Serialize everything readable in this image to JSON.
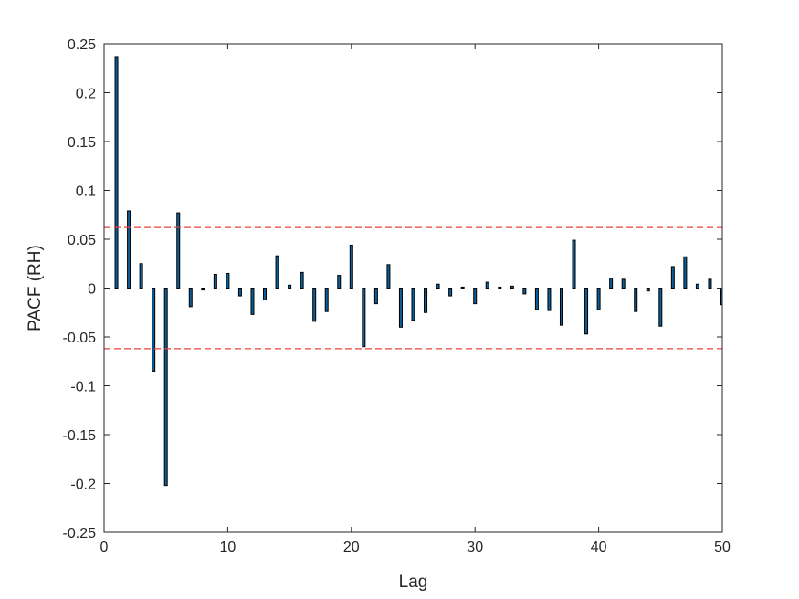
{
  "chart_data": {
    "type": "bar",
    "xlabel": "Lag",
    "ylabel": "PACF (RH)",
    "xlim": [
      0,
      50
    ],
    "ylim": [
      -0.25,
      0.25
    ],
    "x_ticks": [
      0,
      10,
      20,
      30,
      40,
      50
    ],
    "x_tick_labels": [
      "0",
      "10",
      "20",
      "30",
      "40",
      "50"
    ],
    "y_ticks": [
      0.25,
      0.2,
      0.15,
      0.1,
      0.05,
      0,
      -0.05,
      -0.1,
      -0.15,
      -0.2,
      -0.25
    ],
    "y_tick_labels": [
      "0.25",
      "0.2",
      "0.15",
      "0.1",
      "0.05",
      "0",
      "-0.05",
      "-0.1",
      "-0.15",
      "-0.2",
      "-0.25"
    ],
    "confidence_bounds": {
      "upper": 0.062,
      "lower": -0.062,
      "color": "#e8413a",
      "style": "dashed"
    },
    "bar_color": "#0a5e9c",
    "bar_edge_color": "#000000",
    "grid": false,
    "lags": [
      1,
      2,
      3,
      4,
      5,
      6,
      7,
      8,
      9,
      10,
      11,
      12,
      13,
      14,
      15,
      16,
      17,
      18,
      19,
      20,
      21,
      22,
      23,
      24,
      25,
      26,
      27,
      28,
      29,
      30,
      31,
      32,
      33,
      34,
      35,
      36,
      37,
      38,
      39,
      40,
      41,
      42,
      43,
      44,
      45,
      46,
      47,
      48,
      49,
      50
    ],
    "values": [
      0.237,
      0.079,
      0.025,
      -0.085,
      -0.202,
      0.077,
      -0.019,
      -0.002,
      0.014,
      0.015,
      -0.008,
      -0.027,
      -0.012,
      0.033,
      0.003,
      0.016,
      -0.034,
      -0.024,
      0.013,
      0.044,
      -0.06,
      -0.016,
      0.024,
      -0.04,
      -0.033,
      -0.025,
      0.004,
      -0.008,
      0.001,
      -0.016,
      0.006,
      0.001,
      0.002,
      -0.006,
      -0.022,
      -0.023,
      -0.038,
      0.049,
      -0.047,
      -0.022,
      0.01,
      0.009,
      -0.024,
      -0.003,
      -0.039,
      0.022,
      0.032,
      0.004,
      0.009,
      -0.017
    ]
  }
}
